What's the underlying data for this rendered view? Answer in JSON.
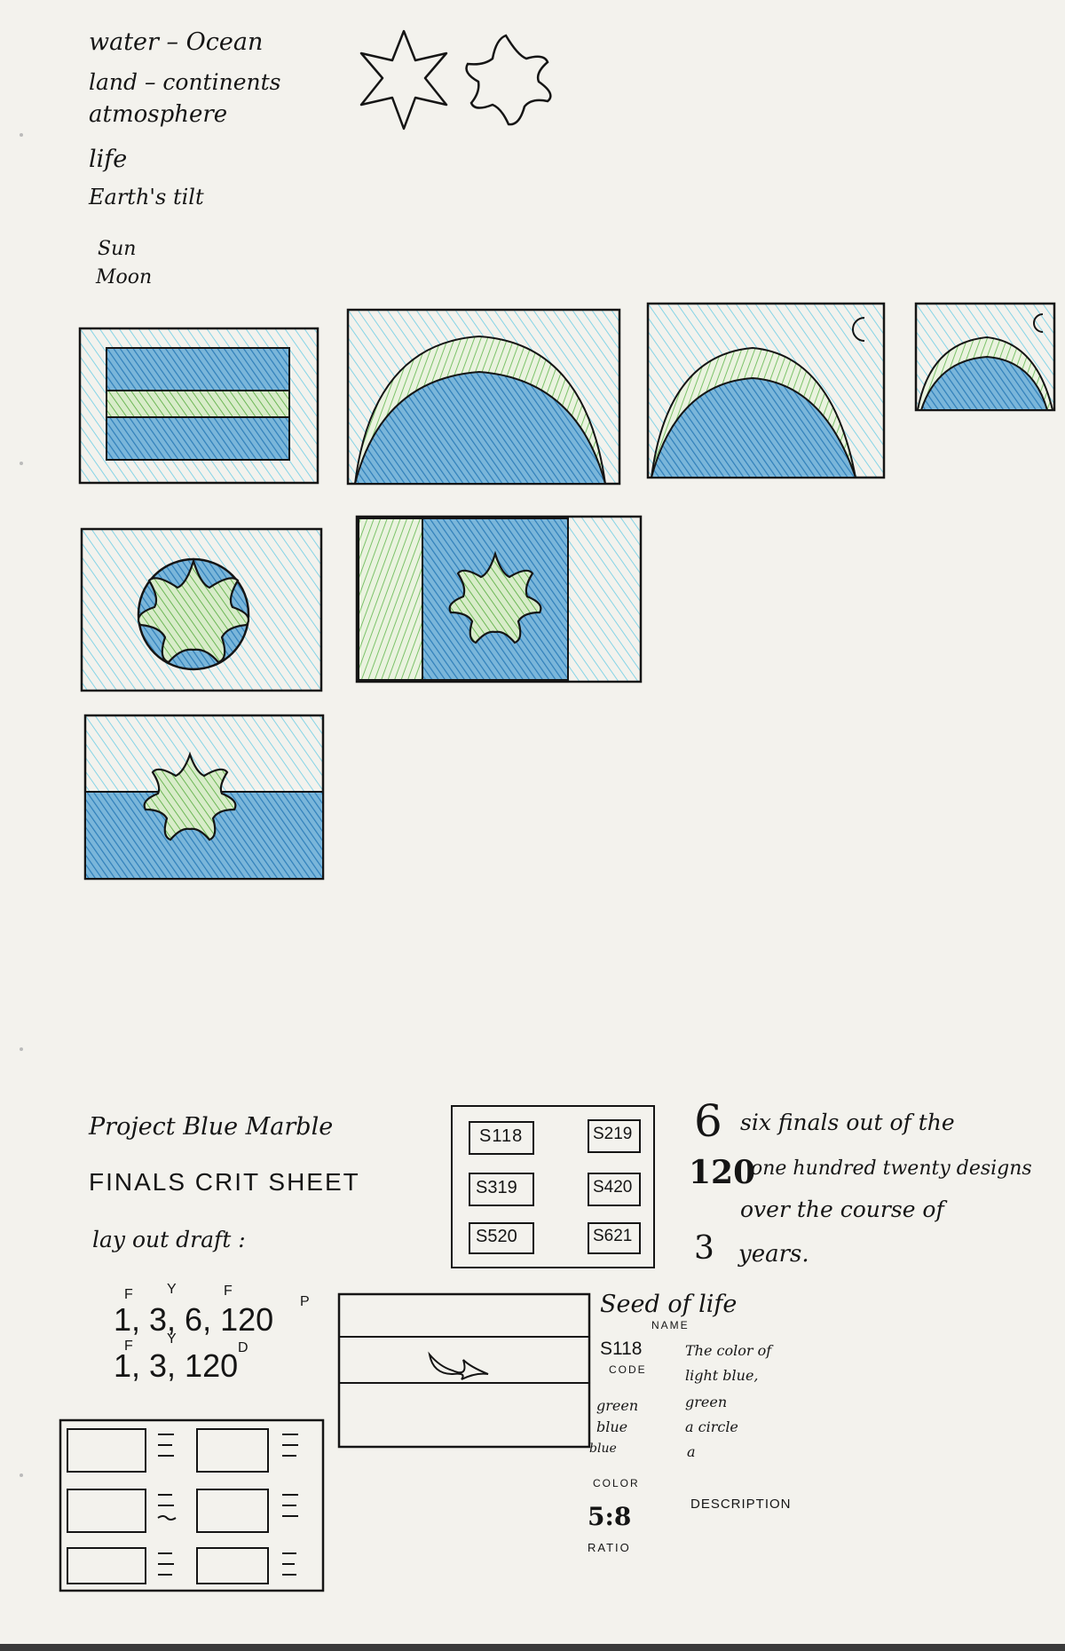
{
  "notes": {
    "items": [
      "water – Ocean",
      "land – continents",
      "atmosphere",
      "life",
      "Earth's tilt",
      "Sun",
      "Moon"
    ]
  },
  "sheet": {
    "title": "Project Blue Marble",
    "subtitle": "FINALS CRIT SHEET",
    "draft_label": "lay out draft :",
    "draft_line1": "1, 3, 6, 120",
    "draft_line1_sup": [
      "F",
      "Y",
      "F",
      "P"
    ],
    "draft_line2": "1, 3, 120",
    "draft_line2_sup": [
      "F",
      "Y",
      "D"
    ],
    "codes": [
      "S118",
      "S219",
      "S319",
      "S420",
      "S520",
      "S621"
    ],
    "stats": [
      {
        "num": "6",
        "text": "six finals out of the"
      },
      {
        "num": "120",
        "text": "one hundred twenty designs"
      },
      {
        "num": "",
        "text": "over the course of"
      },
      {
        "num": "3",
        "text": "years."
      }
    ],
    "detail": {
      "name_value": "Seed of life",
      "name_label": "NAME",
      "code_value": "S118",
      "code_label": "CODE",
      "colors": [
        "green",
        "blue",
        "blue"
      ],
      "color_label": "COLOR",
      "ratio_value": "5:8",
      "ratio_label": "RATIO",
      "description_lines": [
        "The color of",
        "light blue,",
        "green",
        "a circle",
        "a"
      ],
      "description_label": "DESCRIPTION"
    }
  },
  "colors": {
    "ink": "#151515",
    "light_blue": "#7fd3e6",
    "mid_blue": "#3a8fc7",
    "green": "#7cc26a"
  }
}
